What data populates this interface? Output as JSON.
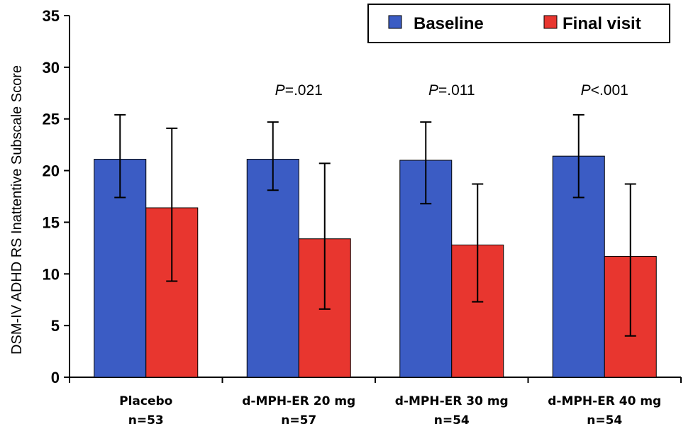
{
  "chart_data": {
    "type": "bar",
    "categories": [
      "Placebo",
      "d-MPH-ER 20 mg",
      "d-MPH-ER 30 mg",
      "d-MPH-ER 40 mg"
    ],
    "category_n": [
      "n=53",
      "n=57",
      "n=54",
      "n=54"
    ],
    "series": [
      {
        "name": "Baseline",
        "color": "#3b5cc4",
        "values": [
          21.1,
          21.1,
          21.0,
          21.4
        ],
        "err_low": [
          17.4,
          18.1,
          16.8,
          17.4
        ],
        "err_high": [
          25.4,
          24.7,
          24.7,
          25.4
        ]
      },
      {
        "name": "Final visit",
        "color": "#e8362f",
        "values": [
          16.4,
          13.4,
          12.8,
          11.7
        ],
        "err_low": [
          9.3,
          6.6,
          7.3,
          4.0
        ],
        "err_high": [
          24.1,
          20.7,
          18.7,
          18.7
        ]
      }
    ],
    "annotations": [
      {
        "category_index": 1,
        "italic": "P",
        "text": "=.021"
      },
      {
        "category_index": 2,
        "italic": "P",
        "text": "=.011"
      },
      {
        "category_index": 3,
        "italic": "P",
        "text": "<.001"
      }
    ],
    "ylabel": "DSM-IV ADHD RS Inattentive Subscale Score",
    "xlabel": "",
    "ylim": [
      0,
      35
    ],
    "yticks": [
      0,
      5,
      10,
      15,
      20,
      25,
      30,
      35
    ],
    "grid": false,
    "legend_position": "top-right"
  }
}
